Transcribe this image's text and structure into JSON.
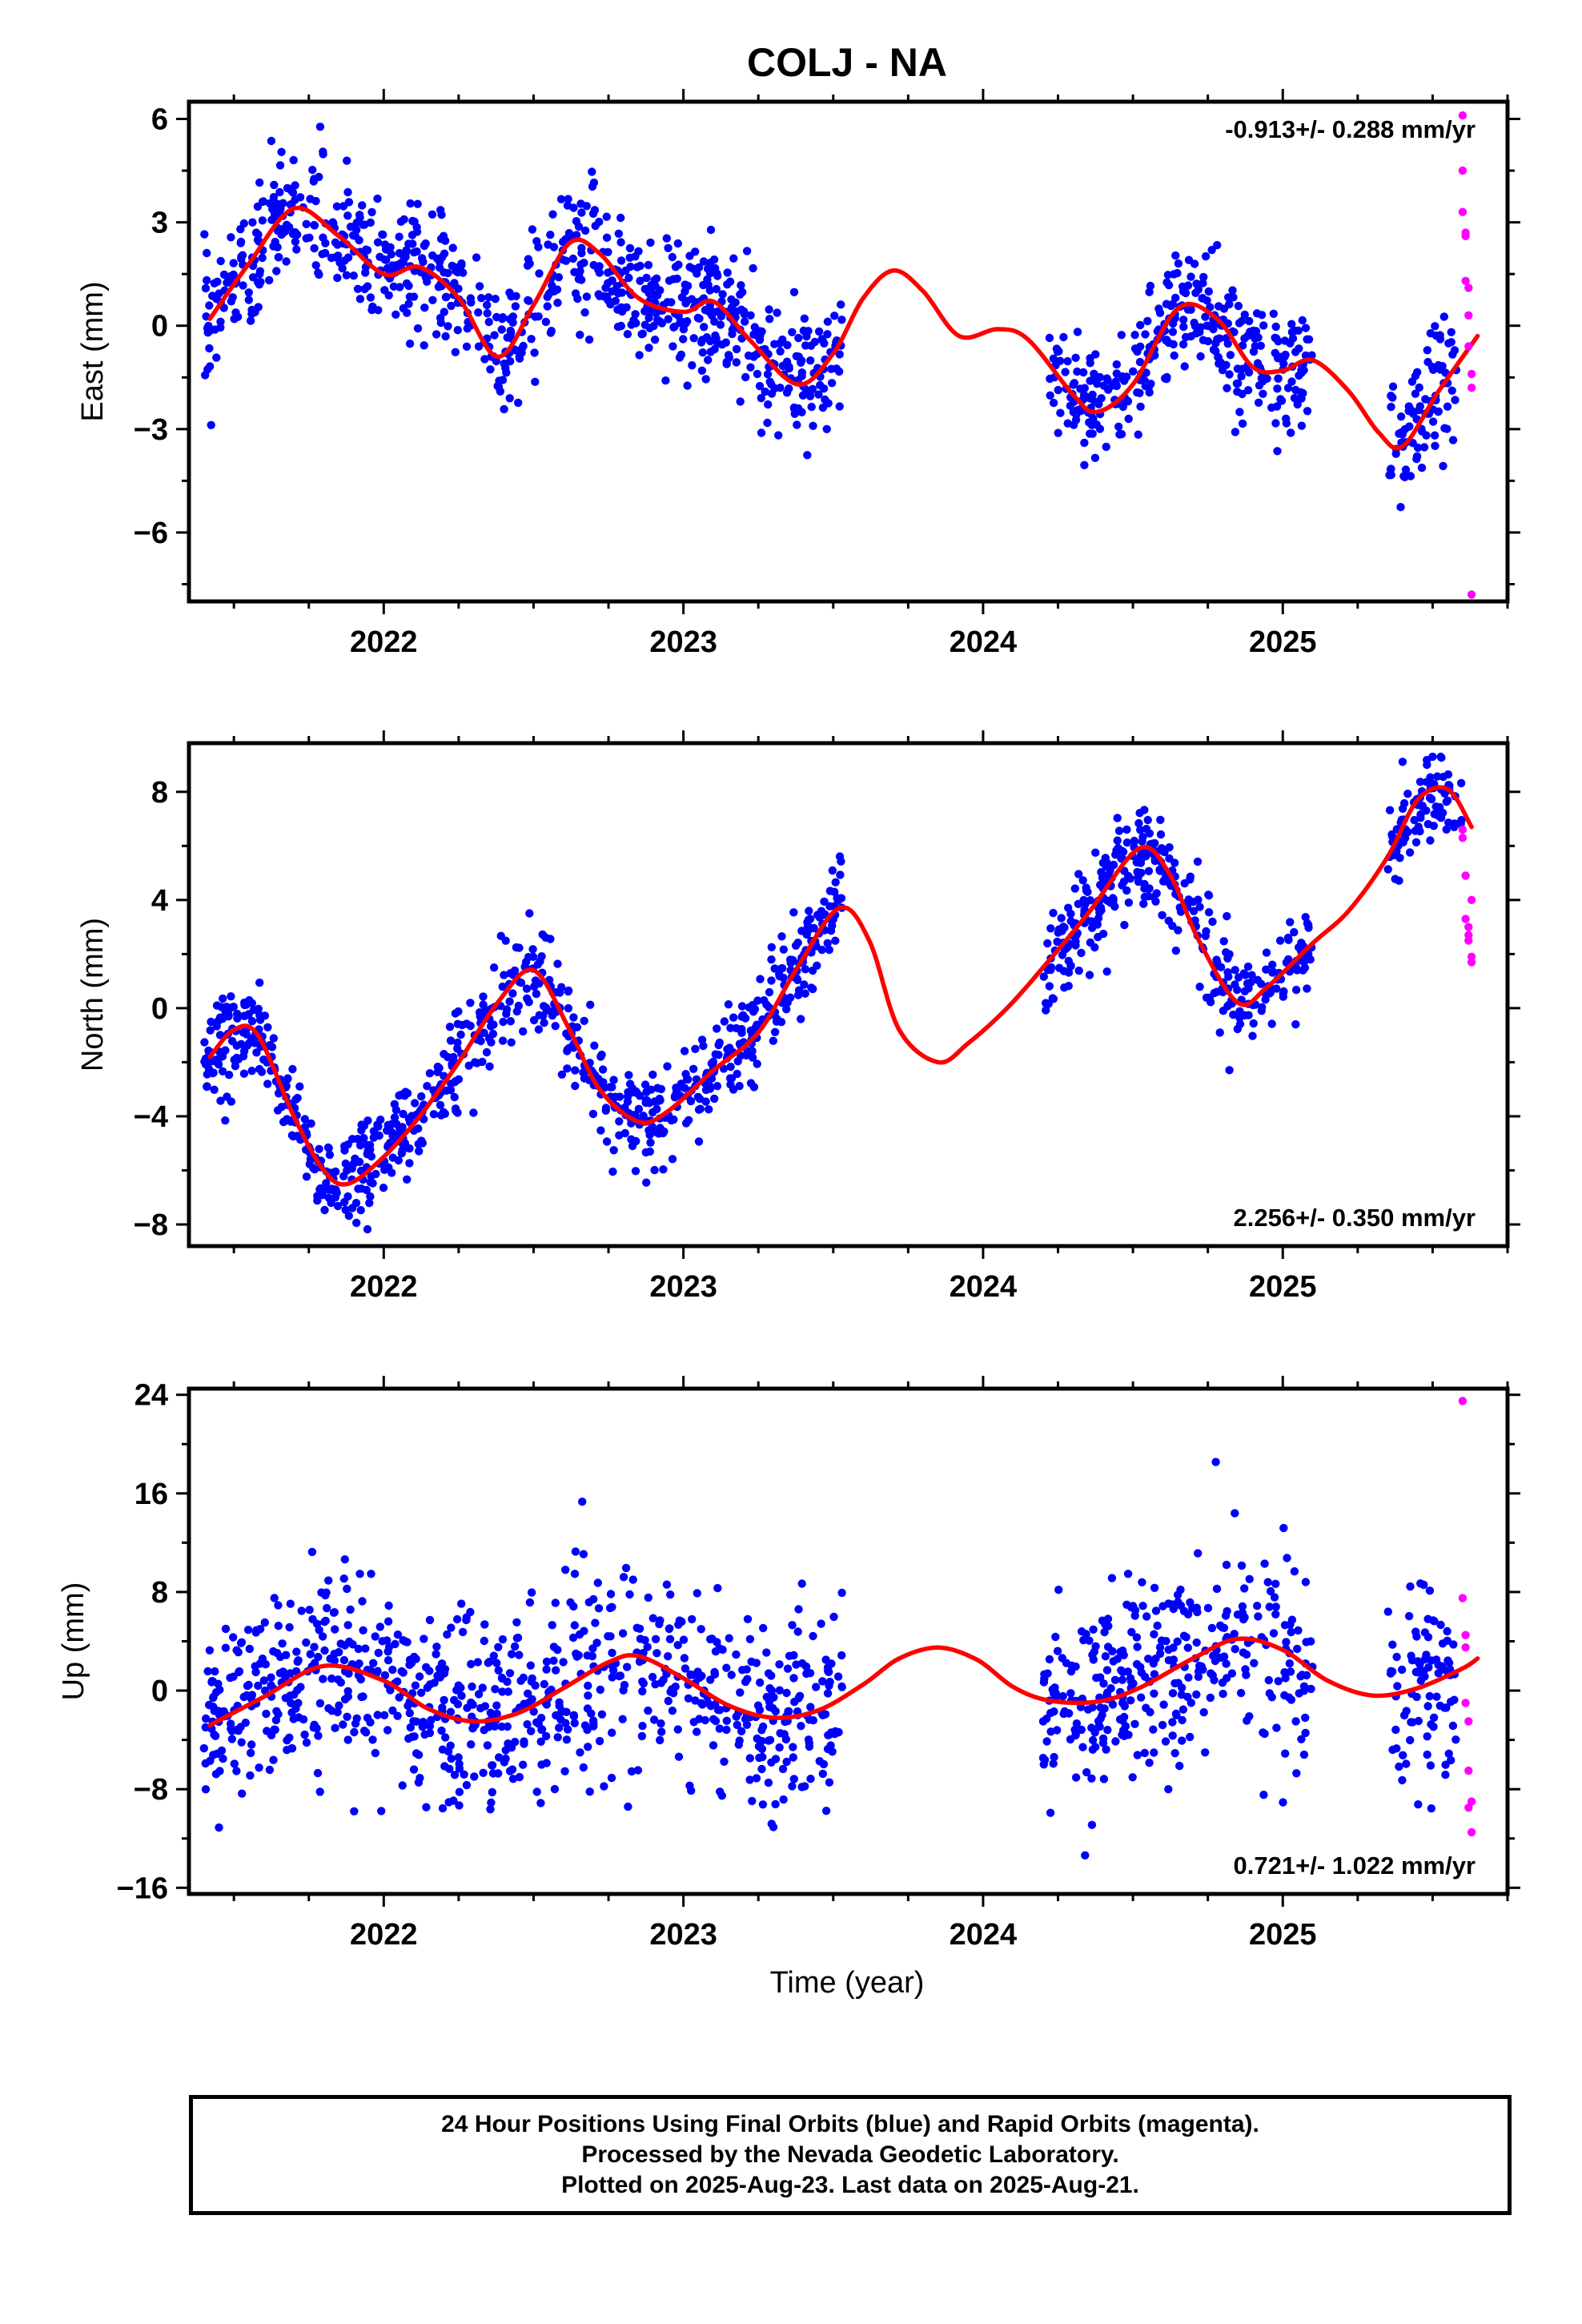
{
  "figure": {
    "title": "COLJ - NA",
    "xlabel": "Time (year)"
  },
  "colors": {
    "final_orbits": "#0000ff",
    "rapid_orbits": "#ff00ff",
    "model_fit": "#ff0000",
    "frame": "#000000"
  },
  "caption": {
    "line1": "24 Hour Positions Using Final Orbits (blue) and Rapid Orbits (magenta).",
    "line2": "Processed by the Nevada Geodetic Laboratory.",
    "line3": "Plotted on 2025-Aug-23. Last data on 2025-Aug-21."
  },
  "chart_data": [
    {
      "type": "scatter",
      "component": "East",
      "ylabel": "East (mm)",
      "xlim": [
        2021.35,
        2025.75
      ],
      "ylim": [
        -8,
        6.5
      ],
      "xticks": [
        2022,
        2023,
        2024,
        2025
      ],
      "yticks": [
        -6,
        -3,
        0,
        3,
        6
      ],
      "rate_label": "-0.913+/- 0.288 mm/yr",
      "rate_label_position": "top-right",
      "grid": false,
      "fit": {
        "x": [
          2021.42,
          2021.55,
          2021.7,
          2021.85,
          2022.0,
          2022.12,
          2022.25,
          2022.38,
          2022.5,
          2022.62,
          2022.72,
          2022.85,
          2023.0,
          2023.1,
          2023.22,
          2023.38,
          2023.5,
          2023.6,
          2023.7,
          2023.8,
          2023.92,
          2024.05,
          2024.15,
          2024.3,
          2024.38,
          2024.5,
          2024.65,
          2024.78,
          2024.9,
          2025.0,
          2025.1,
          2025.22,
          2025.32,
          2025.4,
          2025.52,
          2025.65
        ],
        "y": [
          0.2,
          1.8,
          3.4,
          2.6,
          1.5,
          1.7,
          0.8,
          -0.9,
          0.6,
          2.4,
          2.1,
          0.8,
          0.4,
          0.7,
          -0.4,
          -1.7,
          -0.8,
          0.8,
          1.6,
          1.0,
          -0.3,
          -0.1,
          -0.4,
          -2.0,
          -2.5,
          -1.7,
          0.5,
          0.2,
          -1.2,
          -1.3,
          -1.0,
          -1.9,
          -3.1,
          -3.5,
          -1.9,
          -0.3
        ]
      },
      "final_orbits": {
        "data_segments": [
          [
            2021.4,
            2023.53
          ],
          [
            2024.22,
            2025.1
          ],
          [
            2025.35,
            2025.58
          ]
        ],
        "approx_scatter_mm": 0.9,
        "approx_points": 1250
      },
      "rapid_orbits": {
        "x": [
          2025.6,
          2025.6,
          2025.6,
          2025.61,
          2025.61,
          2025.61,
          2025.62,
          2025.62,
          2025.62,
          2025.63,
          2025.63,
          2025.63
        ],
        "y": [
          6.1,
          4.5,
          3.3,
          2.7,
          2.6,
          1.3,
          1.1,
          0.3,
          -0.6,
          -1.4,
          -1.8,
          -7.8
        ]
      }
    },
    {
      "type": "scatter",
      "component": "North",
      "ylabel": "North (mm)",
      "xlim": [
        2021.35,
        2025.75
      ],
      "ylim": [
        -8.8,
        9.8
      ],
      "xticks": [
        2022,
        2023,
        2024,
        2025
      ],
      "yticks": [
        -8,
        -4,
        0,
        4,
        8
      ],
      "rate_label": "2.256+/- 0.350 mm/yr",
      "rate_label_position": "bottom-right",
      "grid": false,
      "fit": {
        "x": [
          2021.42,
          2021.5,
          2021.58,
          2021.7,
          2021.8,
          2021.88,
          2022.0,
          2022.12,
          2022.25,
          2022.38,
          2022.5,
          2022.62,
          2022.72,
          2022.85,
          2022.95,
          2023.1,
          2023.25,
          2023.38,
          2023.52,
          2023.62,
          2023.72,
          2023.85,
          2023.95,
          2024.08,
          2024.2,
          2024.35,
          2024.52,
          2024.62,
          2024.72,
          2024.85,
          2024.95,
          2025.1,
          2025.22,
          2025.35,
          2025.45,
          2025.55,
          2025.63
        ],
        "y": [
          -1.8,
          -0.8,
          -1.0,
          -4.0,
          -6.0,
          -6.5,
          -5.5,
          -4.0,
          -2.0,
          0.2,
          1.4,
          -0.8,
          -3.0,
          -4.2,
          -3.8,
          -2.3,
          -0.9,
          1.5,
          3.7,
          2.5,
          -0.8,
          -2.0,
          -1.3,
          0.0,
          1.5,
          3.5,
          5.9,
          5.0,
          2.5,
          0.2,
          0.8,
          2.4,
          3.6,
          5.6,
          7.7,
          8.1,
          6.7
        ]
      },
      "final_orbits": {
        "data_segments": [
          [
            2021.4,
            2023.53
          ],
          [
            2024.2,
            2025.1
          ],
          [
            2025.35,
            2025.6
          ]
        ],
        "approx_scatter_mm": 0.9,
        "approx_points": 1250
      },
      "rapid_orbits": {
        "x": [
          2025.6,
          2025.6,
          2025.61,
          2025.61,
          2025.62,
          2025.62,
          2025.62,
          2025.63,
          2025.63,
          2025.63
        ],
        "y": [
          6.3,
          6.6,
          4.9,
          3.3,
          3.0,
          2.7,
          2.5,
          1.9,
          1.7,
          4.0
        ]
      }
    },
    {
      "type": "scatter",
      "component": "Up",
      "ylabel": "Up (mm)",
      "xlim": [
        2021.35,
        2025.75
      ],
      "ylim": [
        -16.5,
        24.5
      ],
      "xticks": [
        2022,
        2023,
        2024,
        2025
      ],
      "yticks": [
        -16,
        -8,
        0,
        8,
        16,
        24
      ],
      "rate_label": "0.721+/- 1.022 mm/yr",
      "rate_label_position": "bottom-right",
      "grid": false,
      "fit": {
        "x": [
          2021.42,
          2021.6,
          2021.8,
          2022.0,
          2022.15,
          2022.3,
          2022.45,
          2022.6,
          2022.75,
          2022.85,
          2023.0,
          2023.15,
          2023.3,
          2023.45,
          2023.6,
          2023.72,
          2023.85,
          2023.98,
          2024.1,
          2024.22,
          2024.38,
          2024.52,
          2024.7,
          2024.85,
          2025.0,
          2025.15,
          2025.3,
          2025.45,
          2025.6,
          2025.65
        ],
        "y": [
          -2.8,
          -0.5,
          2.0,
          0.8,
          -1.5,
          -2.5,
          -1.8,
          0.2,
          2.3,
          2.8,
          1.0,
          -1.2,
          -2.2,
          -1.6,
          0.5,
          2.6,
          3.5,
          2.5,
          0.3,
          -0.8,
          -0.9,
          0.2,
          2.6,
          4.2,
          3.3,
          0.8,
          -0.4,
          0.2,
          1.8,
          2.6
        ]
      },
      "final_orbits": {
        "data_segments": [
          [
            2021.4,
            2023.53
          ],
          [
            2024.2,
            2025.1
          ],
          [
            2025.35,
            2025.58
          ]
        ],
        "approx_scatter_mm": 4.0,
        "approx_points": 1250
      },
      "rapid_orbits": {
        "x": [
          2025.6,
          2025.6,
          2025.61,
          2025.61,
          2025.61,
          2025.62,
          2025.62,
          2025.62,
          2025.63,
          2025.63
        ],
        "y": [
          23.5,
          7.5,
          4.5,
          3.5,
          -1.0,
          -2.5,
          -6.5,
          -9.5,
          -9.0,
          -11.5
        ]
      }
    }
  ]
}
